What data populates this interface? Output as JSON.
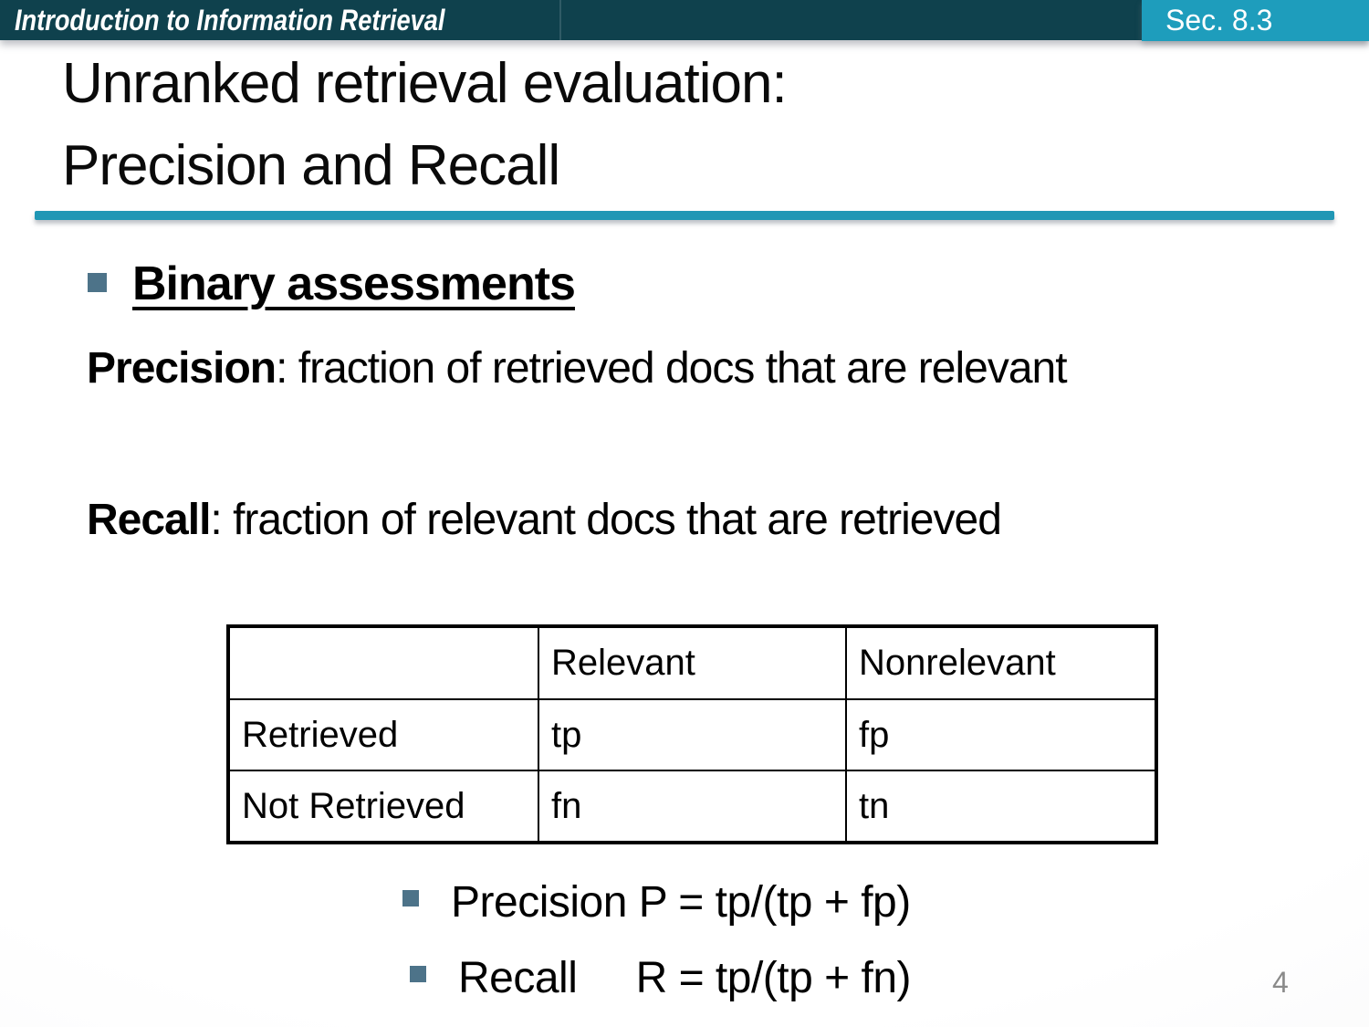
{
  "header": {
    "course_title": "Introduction to Information Retrieval",
    "section_label": "Sec. 8.3"
  },
  "slide": {
    "title_line1": "Unranked retrieval evaluation:",
    "title_line2": "Precision and Recall",
    "bullet_heading": "Binary assessments",
    "precision_term": "Precision",
    "precision_rest": ": fraction of retrieved docs that are relevant",
    "recall_term": "Recall",
    "recall_rest": ": fraction of relevant docs that are retrieved",
    "formulas": [
      "Precision P = tp/(tp + fp)",
      "Recall     R = tp/(tp + fn)"
    ],
    "page_number": "4"
  },
  "table": {
    "headers": [
      "",
      "Relevant",
      "Nonrelevant"
    ],
    "rows": [
      {
        "label": "Retrieved",
        "relevant": "tp",
        "nonrelevant": "fp"
      },
      {
        "label": "Not Retrieved",
        "relevant": "fn",
        "nonrelevant": "tn"
      }
    ]
  },
  "colors": {
    "header_bar": "#0f414d",
    "section_badge": "#1e9dbc",
    "title_rule": "#2097b5",
    "bullet_square": "#4d7389",
    "page_number_gray": "#8a8a8a"
  }
}
